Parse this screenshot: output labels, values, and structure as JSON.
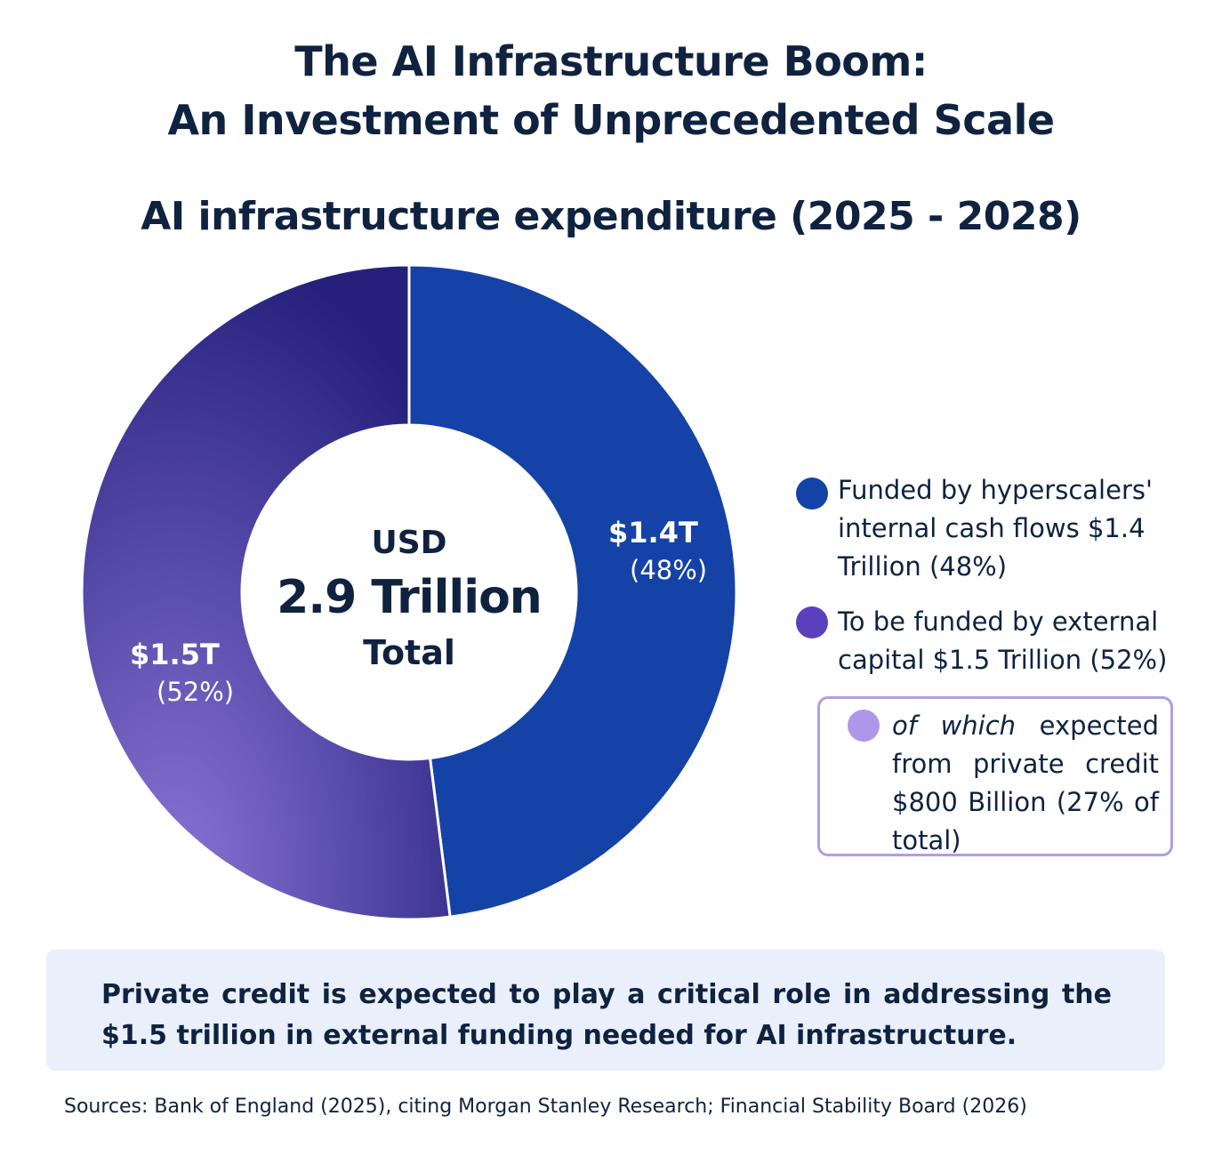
{
  "title": {
    "line1": "The AI Infrastructure Boom:",
    "line2": "An Investment of Unprecedented Scale"
  },
  "chart_data": {
    "type": "pie",
    "variant": "donut",
    "title": "AI infrastructure expenditure (2025 - 2028)",
    "center": {
      "line1": "USD",
      "line2": "2.9 Trillion",
      "line3": "Total"
    },
    "unit": "USD trillion",
    "slices": [
      {
        "id": "internal",
        "value": 1.4,
        "percent": 48,
        "label": "$1.4T",
        "pct_label": "(48%)",
        "color": "#1442a6"
      },
      {
        "id": "external",
        "value": 1.5,
        "percent": 52,
        "label": "$1.5T",
        "pct_label": "(52%)",
        "color_start": "#8a74d6",
        "color_end": "#24207c"
      }
    ],
    "legend": [
      {
        "text": "Funded by hyperscalers' internal cash flows $1.4 Trillion (48%)",
        "color": "#1442a6"
      },
      {
        "text": "To be funded by external capital $1.5 Trillion (52%)",
        "color": "#5b3fbd"
      },
      {
        "text_italic": "of which",
        "text": " expected from private credit $800 Billion (27% of total)",
        "color": "#ae97e8"
      }
    ],
    "legend_position": "right"
  },
  "callout": "Private credit is expected to play a critical role in addressing the $1.5 trillion in external funding needed for AI infrastructure.",
  "sources": "Sources: Bank of England (2025), citing Morgan Stanley Research; Financial Stability Board (2026)"
}
